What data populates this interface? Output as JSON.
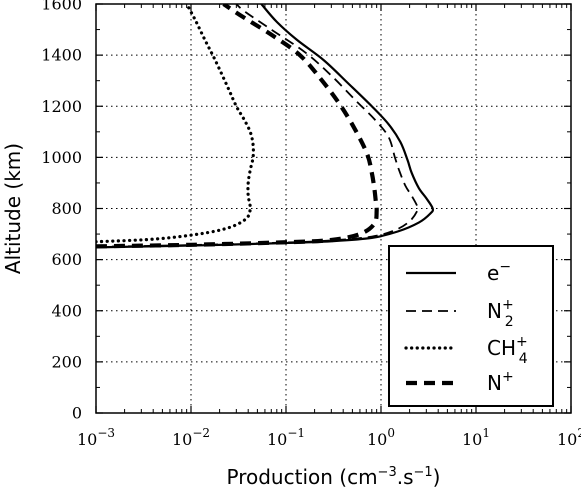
{
  "chart_data": {
    "type": "line",
    "title": "",
    "xlabel": "Production (cm$^{-3}$.s$^{-1}$)",
    "xlabel_parts": {
      "pre": "Production (cm",
      "sup1": "−3",
      "mid": ".s",
      "sup2": "−1",
      "post": ")"
    },
    "ylabel": "Altitude (km)",
    "xscale": "log",
    "xlim": [
      0.001,
      100
    ],
    "ylim": [
      0,
      1600
    ],
    "grid": true,
    "legend_position": "lower-right",
    "x_ticks": [
      {
        "value": 0.001,
        "base": "10",
        "exp": "−3"
      },
      {
        "value": 0.01,
        "base": "10",
        "exp": "−2"
      },
      {
        "value": 0.1,
        "base": "10",
        "exp": "−1"
      },
      {
        "value": 1,
        "base": "10",
        "exp": "0"
      },
      {
        "value": 10,
        "base": "10",
        "exp": "1"
      },
      {
        "value": 100,
        "base": "10",
        "exp": "2"
      }
    ],
    "y_ticks": [
      {
        "value": 0,
        "label": "0"
      },
      {
        "value": 200,
        "label": "200"
      },
      {
        "value": 400,
        "label": "400"
      },
      {
        "value": 600,
        "label": "600"
      },
      {
        "value": 800,
        "label": "800"
      },
      {
        "value": 1000,
        "label": "1000"
      },
      {
        "value": 1200,
        "label": "1200"
      },
      {
        "value": 1400,
        "label": "1400"
      },
      {
        "value": 1600,
        "label": "1600"
      }
    ],
    "series": [
      {
        "name": "e−",
        "label": {
          "base": "e",
          "sup": "−",
          "sub": ""
        },
        "style": "solid",
        "points": [
          [
            0.001,
            648
          ],
          [
            0.01,
            655
          ],
          [
            0.1,
            665
          ],
          [
            0.3,
            672
          ],
          [
            0.8,
            685
          ],
          [
            1.5,
            710
          ],
          [
            2.5,
            745
          ],
          [
            3.3,
            780
          ],
          [
            3.5,
            800
          ],
          [
            3.0,
            840
          ],
          [
            2.5,
            880
          ],
          [
            2.1,
            940
          ],
          [
            1.9,
            990
          ],
          [
            1.6,
            1060
          ],
          [
            1.2,
            1130
          ],
          [
            0.8,
            1200
          ],
          [
            0.45,
            1290
          ],
          [
            0.25,
            1380
          ],
          [
            0.13,
            1460
          ],
          [
            0.08,
            1530
          ],
          [
            0.055,
            1600
          ]
        ]
      },
      {
        "name": "N2+",
        "label": {
          "base": "N",
          "sup": "+",
          "sub": "2"
        },
        "style": "dashed",
        "points": [
          [
            0.001,
            650
          ],
          [
            0.01,
            657
          ],
          [
            0.1,
            667
          ],
          [
            0.3,
            675
          ],
          [
            0.8,
            690
          ],
          [
            1.4,
            715
          ],
          [
            2.0,
            750
          ],
          [
            2.4,
            790
          ],
          [
            2.4,
            810
          ],
          [
            2.1,
            850
          ],
          [
            1.8,
            890
          ],
          [
            1.55,
            950
          ],
          [
            1.4,
            1000
          ],
          [
            1.2,
            1080
          ],
          [
            0.85,
            1150
          ],
          [
            0.55,
            1220
          ],
          [
            0.3,
            1320
          ],
          [
            0.16,
            1410
          ],
          [
            0.07,
            1500
          ],
          [
            0.037,
            1570
          ],
          [
            0.03,
            1600
          ]
        ]
      },
      {
        "name": "CH4+",
        "label": {
          "base": "CH",
          "sup": "+",
          "sub": "4"
        },
        "style": "dotted",
        "points": [
          [
            0.001,
            670
          ],
          [
            0.004,
            680
          ],
          [
            0.012,
            700
          ],
          [
            0.025,
            725
          ],
          [
            0.038,
            760
          ],
          [
            0.042,
            800
          ],
          [
            0.04,
            850
          ],
          [
            0.04,
            900
          ],
          [
            0.042,
            950
          ],
          [
            0.045,
            1000
          ],
          [
            0.045,
            1050
          ],
          [
            0.042,
            1100
          ],
          [
            0.036,
            1150
          ],
          [
            0.03,
            1200
          ],
          [
            0.024,
            1280
          ],
          [
            0.018,
            1380
          ],
          [
            0.014,
            1460
          ],
          [
            0.011,
            1540
          ],
          [
            0.009,
            1600
          ]
        ]
      },
      {
        "name": "N+",
        "label": {
          "base": "N",
          "sup": "+",
          "sub": ""
        },
        "style": "thick-dashed",
        "points": [
          [
            0.001,
            652
          ],
          [
            0.01,
            658
          ],
          [
            0.1,
            668
          ],
          [
            0.3,
            677
          ],
          [
            0.6,
            700
          ],
          [
            0.85,
            740
          ],
          [
            0.9,
            790
          ],
          [
            0.88,
            830
          ],
          [
            0.85,
            880
          ],
          [
            0.8,
            940
          ],
          [
            0.72,
            1010
          ],
          [
            0.55,
            1100
          ],
          [
            0.38,
            1200
          ],
          [
            0.24,
            1300
          ],
          [
            0.14,
            1400
          ],
          [
            0.07,
            1480
          ],
          [
            0.035,
            1550
          ],
          [
            0.022,
            1600
          ]
        ]
      }
    ]
  }
}
